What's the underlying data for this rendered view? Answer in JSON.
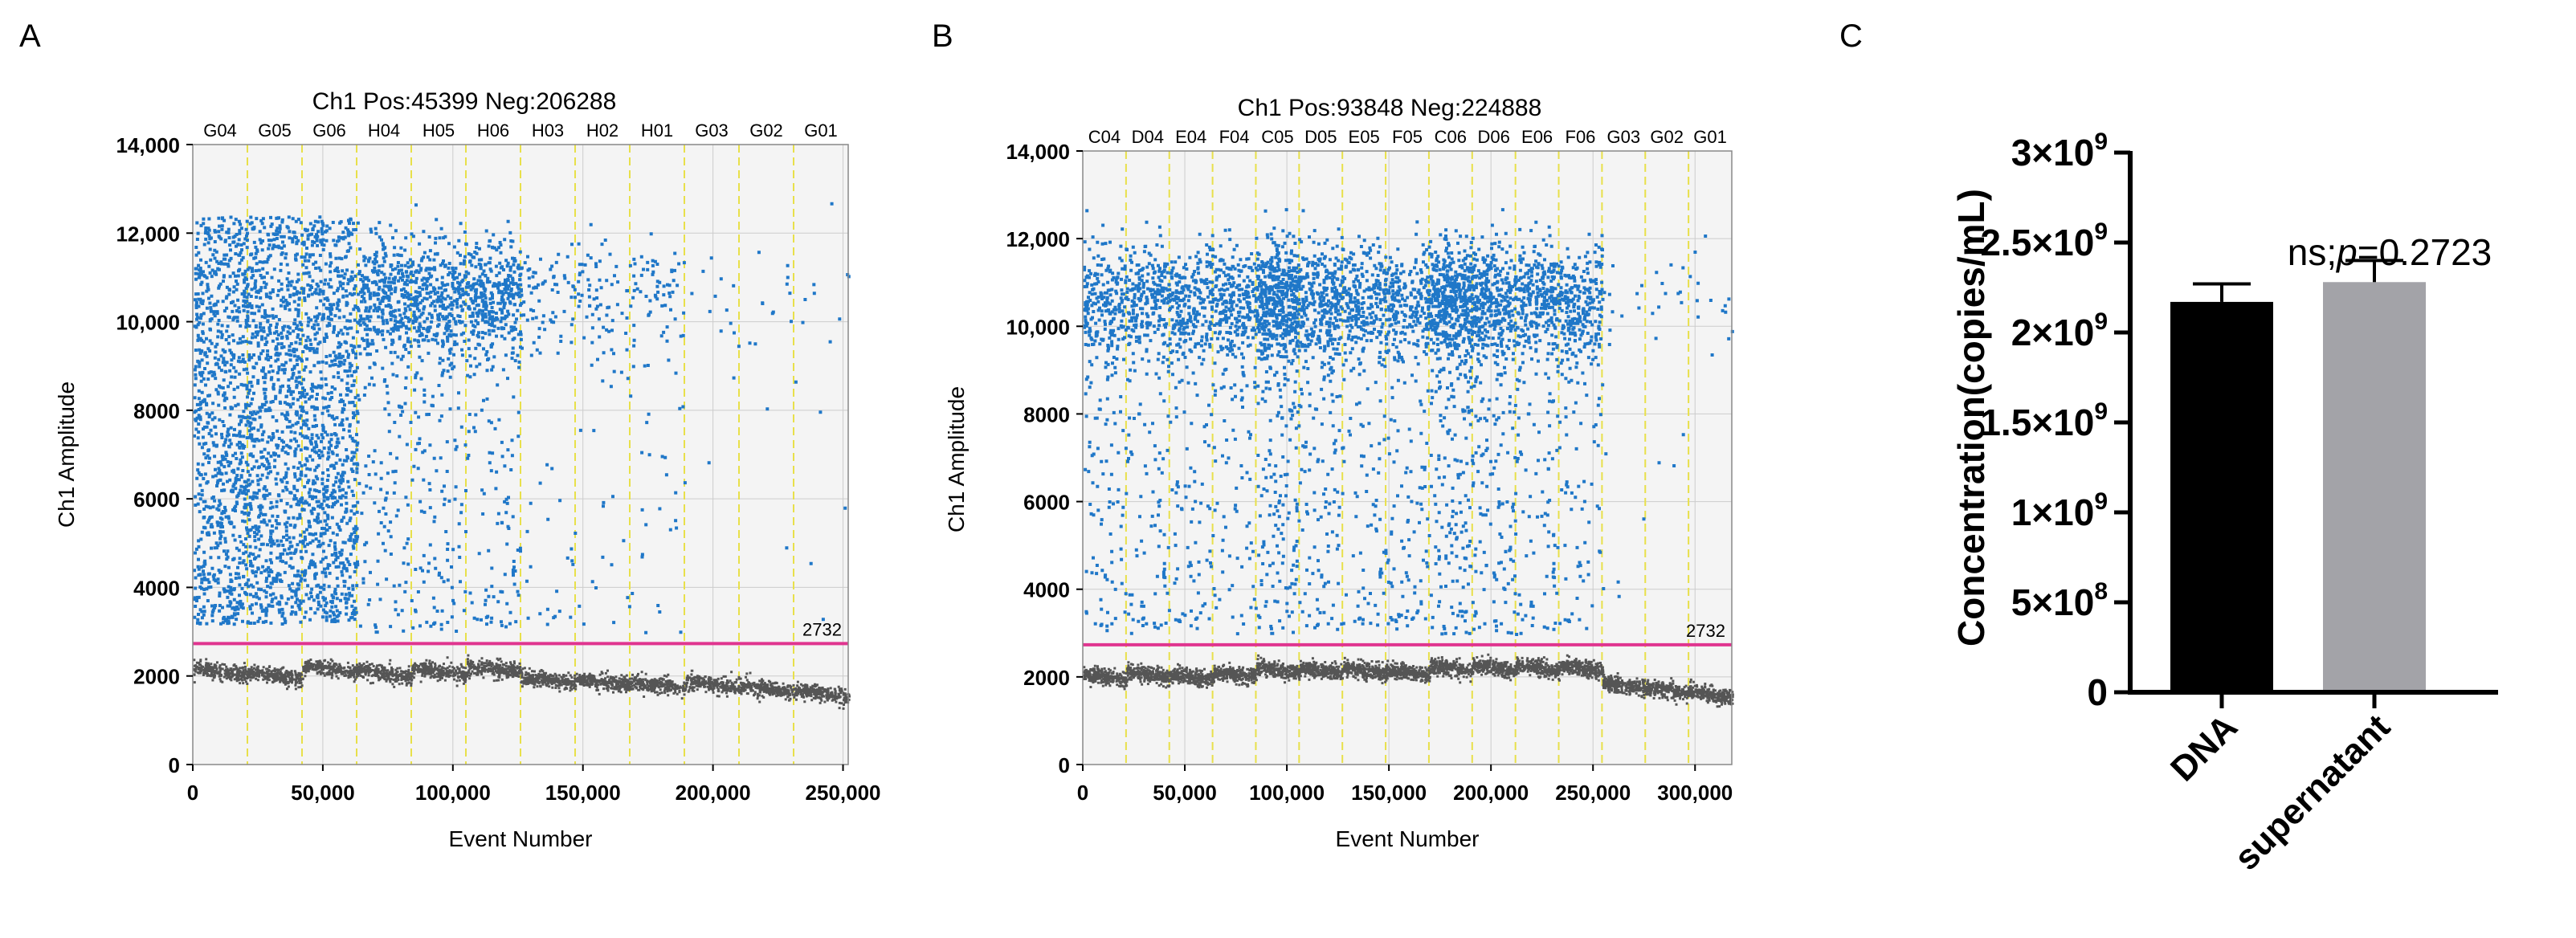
{
  "panels": {
    "a": {
      "label": "A"
    },
    "b": {
      "label": "B"
    },
    "c": {
      "label": "C"
    }
  },
  "colors": {
    "positive": "#1f77c8",
    "negative": "#555555",
    "threshold": "#e0358f",
    "well_divider": "#e8e04a",
    "grid": "#cccccc",
    "plot_bg": "#f4f4f4",
    "bar_dna": "#000000",
    "bar_supernatant": "#a3a3a8"
  },
  "chart_data": [
    {
      "type": "scatter",
      "title": "Ch1 Pos:45399 Neg:206288",
      "xlabel": "Event Number",
      "ylabel": "Ch1 Amplitude",
      "xlim": [
        0,
        252000
      ],
      "ylim": [
        0,
        14000
      ],
      "x_ticks": [
        0,
        50000,
        100000,
        150000,
        200000,
        250000
      ],
      "x_tick_labels": [
        "0",
        "50,000",
        "100,000",
        "150,000",
        "200,000",
        "250,000"
      ],
      "y_ticks": [
        0,
        2000,
        4000,
        6000,
        8000,
        10000,
        12000,
        14000
      ],
      "y_tick_labels": [
        "0",
        "2000",
        "4000",
        "6000",
        "8000",
        "10,000",
        "12,000",
        "14,000"
      ],
      "threshold": 2732,
      "threshold_label": "2732",
      "wells": [
        {
          "name": "G04",
          "start": 0,
          "end": 21000,
          "pos_density": 1.0,
          "neg_mean": 2200
        },
        {
          "name": "G05",
          "start": 21000,
          "end": 42000,
          "pos_density": 1.0,
          "neg_mean": 2100
        },
        {
          "name": "G06",
          "start": 42000,
          "end": 63000,
          "pos_density": 1.0,
          "neg_mean": 2250
        },
        {
          "name": "H04",
          "start": 63000,
          "end": 84000,
          "pos_density": 0.5,
          "neg_mean": 2150
        },
        {
          "name": "H05",
          "start": 84000,
          "end": 105000,
          "pos_density": 0.5,
          "neg_mean": 2200
        },
        {
          "name": "H06",
          "start": 105000,
          "end": 126000,
          "pos_density": 0.5,
          "neg_mean": 2250
        },
        {
          "name": "H03",
          "start": 126000,
          "end": 147000,
          "pos_density": 0.1,
          "neg_mean": 2000
        },
        {
          "name": "H02",
          "start": 147000,
          "end": 168000,
          "pos_density": 0.1,
          "neg_mean": 1950
        },
        {
          "name": "H01",
          "start": 168000,
          "end": 189000,
          "pos_density": 0.1,
          "neg_mean": 1900
        },
        {
          "name": "G03",
          "start": 189000,
          "end": 210000,
          "pos_density": 0.015,
          "neg_mean": 1900
        },
        {
          "name": "G02",
          "start": 210000,
          "end": 231000,
          "pos_density": 0.015,
          "neg_mean": 1800
        },
        {
          "name": "G01",
          "start": 231000,
          "end": 252000,
          "pos_density": 0.015,
          "neg_mean": 1700
        }
      ]
    },
    {
      "type": "scatter",
      "title": "Ch1 Pos:93848 Neg:224888",
      "xlabel": "Event Number",
      "ylabel": "Ch1 Amplitude",
      "xlim": [
        0,
        318000
      ],
      "ylim": [
        0,
        14000
      ],
      "x_ticks": [
        0,
        50000,
        100000,
        150000,
        200000,
        250000,
        300000
      ],
      "x_tick_labels": [
        "0",
        "50,000",
        "100,000",
        "150,000",
        "200,000",
        "250,000",
        "300,000"
      ],
      "y_ticks": [
        0,
        2000,
        4000,
        6000,
        8000,
        10000,
        12000,
        14000
      ],
      "y_tick_labels": [
        "0",
        "2000",
        "4000",
        "6000",
        "8000",
        "10,000",
        "12,000",
        "14,000"
      ],
      "threshold": 2732,
      "threshold_label": "2732",
      "wells": [
        {
          "name": "C04",
          "start": 0,
          "end": 21200,
          "pos_density": 0.35,
          "neg_mean": 2100
        },
        {
          "name": "D04",
          "start": 21200,
          "end": 42400,
          "pos_density": 0.35,
          "neg_mean": 2150
        },
        {
          "name": "E04",
          "start": 42400,
          "end": 63600,
          "pos_density": 0.35,
          "neg_mean": 2100
        },
        {
          "name": "F04",
          "start": 63600,
          "end": 84800,
          "pos_density": 0.35,
          "neg_mean": 2150
        },
        {
          "name": "C05",
          "start": 84800,
          "end": 106000,
          "pos_density": 0.7,
          "neg_mean": 2250
        },
        {
          "name": "D05",
          "start": 106000,
          "end": 127200,
          "pos_density": 0.45,
          "neg_mean": 2250
        },
        {
          "name": "E05",
          "start": 127200,
          "end": 148400,
          "pos_density": 0.35,
          "neg_mean": 2250
        },
        {
          "name": "F05",
          "start": 148400,
          "end": 169600,
          "pos_density": 0.35,
          "neg_mean": 2200
        },
        {
          "name": "C06",
          "start": 169600,
          "end": 190800,
          "pos_density": 0.7,
          "neg_mean": 2300
        },
        {
          "name": "D06",
          "start": 190800,
          "end": 212000,
          "pos_density": 0.5,
          "neg_mean": 2300
        },
        {
          "name": "E06",
          "start": 212000,
          "end": 233200,
          "pos_density": 0.4,
          "neg_mean": 2300
        },
        {
          "name": "F06",
          "start": 233200,
          "end": 254400,
          "pos_density": 0.35,
          "neg_mean": 2300
        },
        {
          "name": "G03",
          "start": 254400,
          "end": 275600,
          "pos_density": 0.015,
          "neg_mean": 1900
        },
        {
          "name": "G02",
          "start": 275600,
          "end": 296800,
          "pos_density": 0.015,
          "neg_mean": 1800
        },
        {
          "name": "G01",
          "start": 296800,
          "end": 318000,
          "pos_density": 0.015,
          "neg_mean": 1700
        }
      ]
    },
    {
      "type": "bar",
      "categories": [
        "DNA",
        "supernatant"
      ],
      "values": [
        2170000000,
        2280000000
      ],
      "errors": [
        100000000,
        120000000
      ],
      "ylabel": "Concentration(copies/mL)",
      "ylim": [
        0,
        3000000000
      ],
      "y_ticks": [
        0,
        500000000,
        1000000000,
        1500000000,
        2000000000,
        2500000000,
        3000000000
      ],
      "y_tick_labels": [
        {
          "base": "0",
          "exp": ""
        },
        {
          "base": "5×10",
          "exp": "8"
        },
        {
          "base": "1×10",
          "exp": "9"
        },
        {
          "base": "1.5×10",
          "exp": "9"
        },
        {
          "base": "2×10",
          "exp": "9"
        },
        {
          "base": "2.5×10",
          "exp": "9"
        },
        {
          "base": "3×10",
          "exp": "9"
        }
      ],
      "annotation": {
        "prefix": "ns;",
        "p_symbol": "p",
        "value": "=0.2723"
      }
    }
  ]
}
